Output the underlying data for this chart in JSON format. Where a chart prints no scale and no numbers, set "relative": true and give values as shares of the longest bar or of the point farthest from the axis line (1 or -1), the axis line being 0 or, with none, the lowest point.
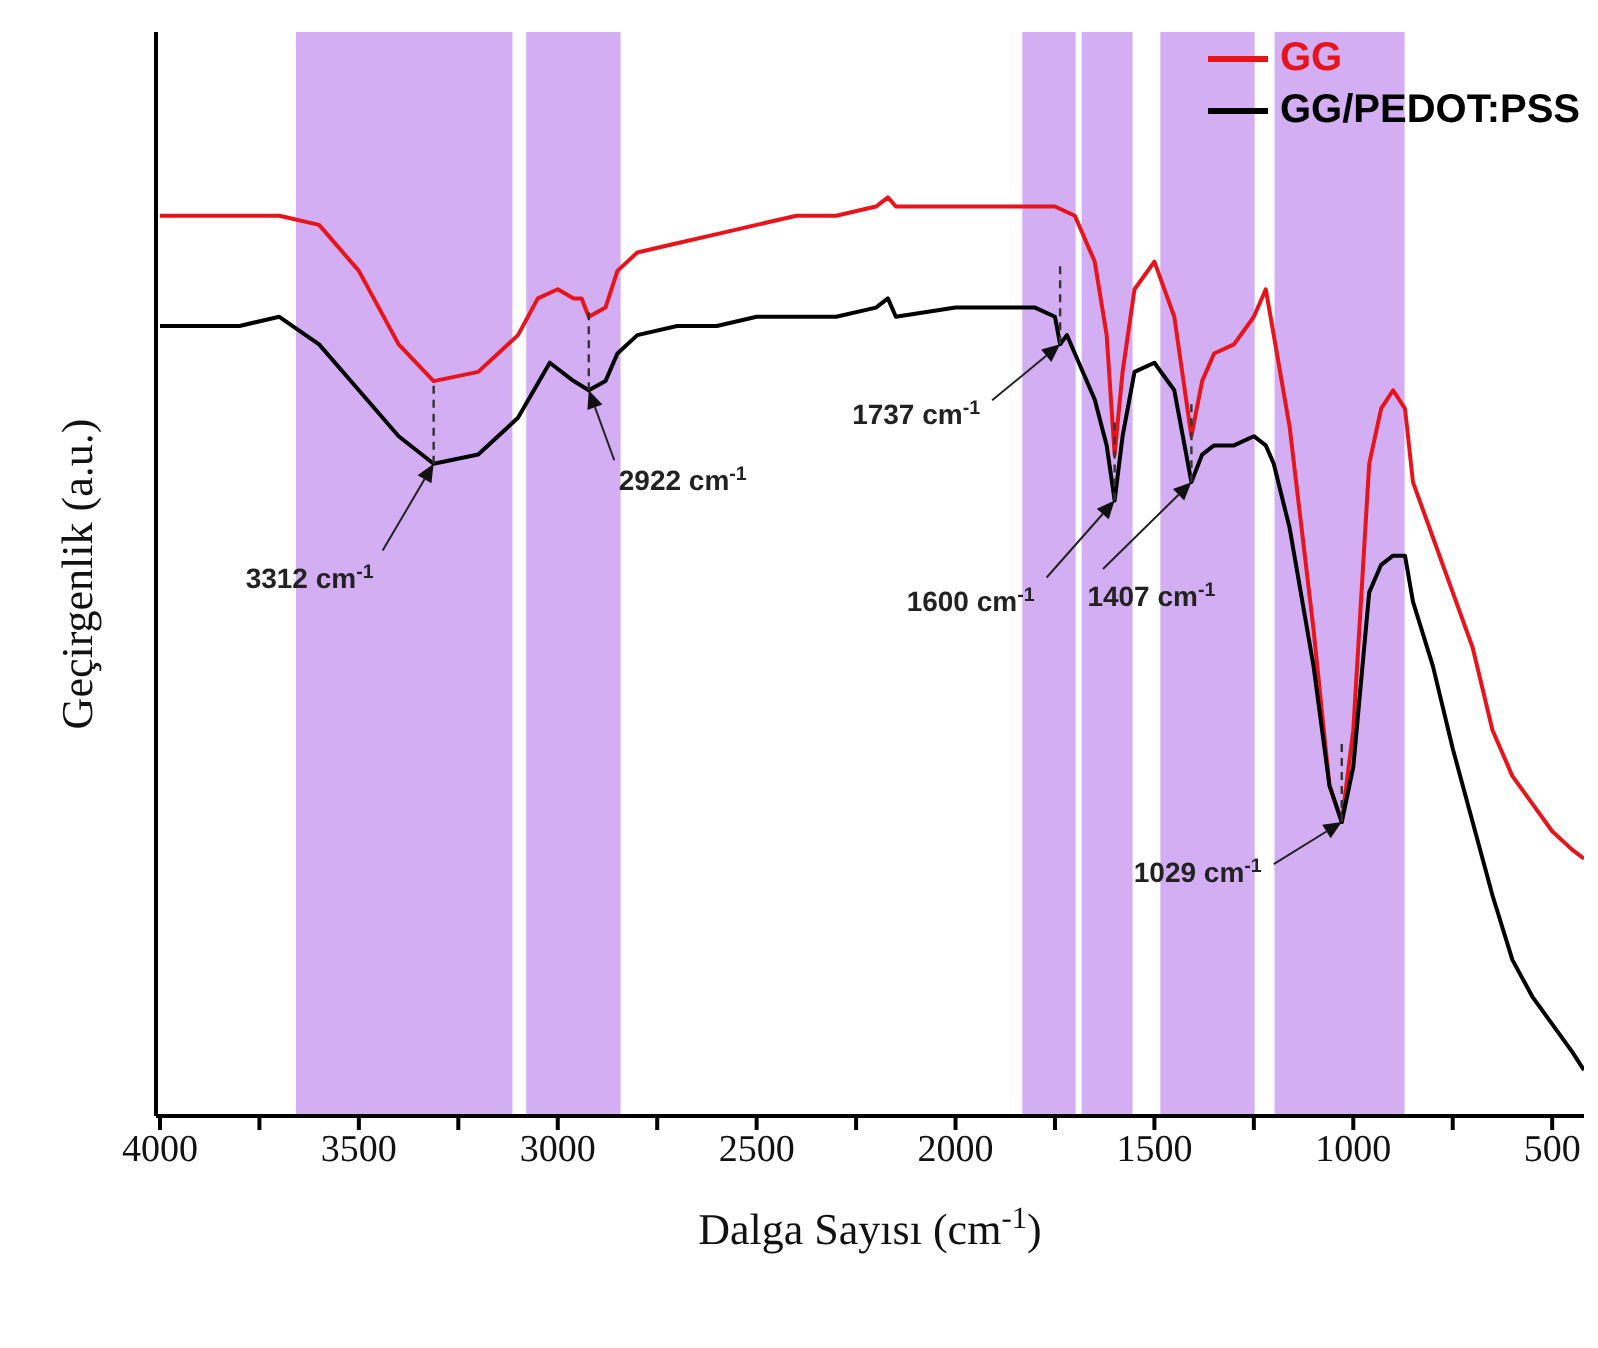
{
  "chart_data": {
    "type": "line",
    "relative": true,
    "xlabel": "Dalga Sayısı (cm$^{-1}$)",
    "ylabel": "Geçirgenlik (a.u.)",
    "xlim": [
      4010,
      420
    ],
    "xticks": [
      4000,
      {
        "value": 3750,
        "label": null
      },
      3500,
      {
        "value": 3250,
        "label": null
      },
      3000,
      {
        "value": 2750,
        "label": null
      },
      2500,
      {
        "value": 2250,
        "label": null
      },
      2000,
      {
        "value": 1750,
        "label": null
      },
      1500,
      {
        "value": 1250,
        "label": null
      },
      1000,
      {
        "value": 750,
        "label": null
      },
      500
    ],
    "legend": "top right",
    "marker": "none",
    "line_style": "solid",
    "grid": false,
    "series": [
      {
        "name": "GG",
        "color": "#e8141b",
        "x": [
          4000,
          3800,
          3700,
          3600,
          3500,
          3400,
          3312,
          3200,
          3100,
          3050,
          3000,
          2960,
          2940,
          2922,
          2880,
          2850,
          2800,
          2700,
          2600,
          2500,
          2400,
          2300,
          2200,
          2170,
          2150,
          2000,
          1900,
          1800,
          1750,
          1700,
          1650,
          1620,
          1600,
          1580,
          1550,
          1500,
          1450,
          1407,
          1380,
          1350,
          1300,
          1250,
          1220,
          1200,
          1160,
          1100,
          1060,
          1029,
          1000,
          960,
          930,
          900,
          870,
          850,
          800,
          750,
          700,
          650,
          600,
          550,
          500,
          450,
          420
        ],
        "values": [
          0.98,
          0.98,
          0.98,
          0.97,
          0.92,
          0.84,
          0.8,
          0.81,
          0.85,
          0.89,
          0.9,
          0.89,
          0.89,
          0.87,
          0.88,
          0.92,
          0.94,
          0.95,
          0.96,
          0.97,
          0.98,
          0.98,
          0.99,
          1.0,
          0.99,
          0.99,
          0.99,
          0.99,
          0.99,
          0.98,
          0.93,
          0.85,
          0.72,
          0.81,
          0.9,
          0.93,
          0.87,
          0.74,
          0.8,
          0.83,
          0.84,
          0.87,
          0.9,
          0.85,
          0.75,
          0.53,
          0.36,
          0.32,
          0.42,
          0.71,
          0.77,
          0.79,
          0.77,
          0.69,
          0.63,
          0.57,
          0.51,
          0.42,
          0.37,
          0.34,
          0.31,
          0.29,
          0.28
        ]
      },
      {
        "name": "GG/PEDOT:PSS",
        "color": "#000000",
        "x": [
          4000,
          3800,
          3700,
          3600,
          3500,
          3400,
          3312,
          3200,
          3100,
          3020,
          2960,
          2922,
          2880,
          2850,
          2800,
          2700,
          2600,
          2500,
          2400,
          2300,
          2200,
          2170,
          2150,
          2000,
          1900,
          1800,
          1750,
          1737,
          1720,
          1700,
          1650,
          1620,
          1600,
          1580,
          1550,
          1500,
          1450,
          1407,
          1380,
          1350,
          1300,
          1250,
          1220,
          1200,
          1160,
          1100,
          1060,
          1029,
          1000,
          960,
          930,
          900,
          870,
          850,
          800,
          750,
          700,
          650,
          600,
          550,
          500,
          450,
          420
        ],
        "values": [
          0.86,
          0.86,
          0.87,
          0.84,
          0.79,
          0.74,
          0.71,
          0.72,
          0.76,
          0.82,
          0.8,
          0.79,
          0.8,
          0.83,
          0.85,
          0.86,
          0.86,
          0.87,
          0.87,
          0.87,
          0.88,
          0.89,
          0.87,
          0.88,
          0.88,
          0.88,
          0.87,
          0.84,
          0.85,
          0.83,
          0.78,
          0.73,
          0.67,
          0.74,
          0.81,
          0.82,
          0.79,
          0.69,
          0.72,
          0.73,
          0.73,
          0.74,
          0.73,
          0.71,
          0.64,
          0.49,
          0.36,
          0.32,
          0.38,
          0.57,
          0.6,
          0.61,
          0.61,
          0.56,
          0.49,
          0.4,
          0.32,
          0.24,
          0.17,
          0.13,
          0.1,
          0.07,
          0.05
        ]
      }
    ],
    "bands": [
      {
        "axis": "x",
        "from": 3658,
        "to": 3114,
        "color": "#d3aef2"
      },
      {
        "axis": "x",
        "from": 3079,
        "to": 2842,
        "color": "#d3aef2"
      },
      {
        "axis": "x",
        "from": 1832,
        "to": 1698,
        "color": "#d3aef2"
      },
      {
        "axis": "x",
        "from": 1683,
        "to": 1555,
        "color": "#d3aef2"
      },
      {
        "axis": "x",
        "from": 1485,
        "to": 1248,
        "color": "#d3aef2"
      },
      {
        "axis": "x",
        "from": 1198,
        "to": 871,
        "color": "#d3aef2"
      }
    ],
    "annotations": [
      {
        "text": "3312 cm$^{-1}$",
        "x": 3312,
        "y": 0.71
      },
      {
        "text": "2922 cm$^{-1}$",
        "x": 2922,
        "y": 0.79
      },
      {
        "text": "1737 cm$^{-1}$",
        "x": 1737,
        "y": 0.84
      },
      {
        "text": "1600 cm$^{-1}$",
        "x": 1600,
        "y": 0.67
      },
      {
        "text": "1407 cm$^{-1}$",
        "x": 1407,
        "y": 0.69
      },
      {
        "text": "1029 cm$^{-1}$",
        "x": 1029,
        "y": 0.32
      }
    ]
  }
}
